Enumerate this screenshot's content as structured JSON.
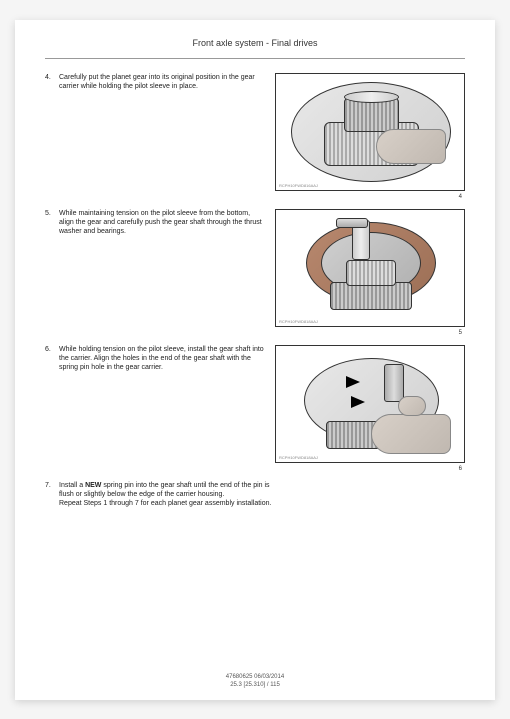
{
  "header": {
    "title": "Front axle system - Final drives"
  },
  "steps": [
    {
      "num": "4.",
      "text": "Carefully put the planet gear into its original position in the gear carrier while holding the pilot sleeve in place.",
      "imgCaption": "RCPH10FWD816AAJ",
      "imgNum": "4"
    },
    {
      "num": "5.",
      "text": "While maintaining tension on the pilot sleeve from the bottom, align the gear and carefully push the gear shaft through the thrust washer and bearings.",
      "imgCaption": "RCPH10FWD818AAJ",
      "imgNum": "5"
    },
    {
      "num": "6.",
      "text": "While holding tension on the pilot sleeve, install the gear shaft into the carrier. Align the holes in the end of the gear shaft with the spring pin hole in the gear carrier.",
      "imgCaption": "RCPH10FWD818AAJ",
      "imgNum": "6"
    },
    {
      "num": "7.",
      "textPart1": "Install a ",
      "textBold": "NEW",
      "textPart2": " spring pin into the gear shaft until the end of the pin is flush or slightly below the edge of the carrier housing.",
      "textPart3": "Repeat Steps 1 through 7 for each planet gear assembly installation."
    }
  ],
  "footer": {
    "line1": "47680625 06/03/2014",
    "line2": "25.3 [25.310] / 115"
  }
}
